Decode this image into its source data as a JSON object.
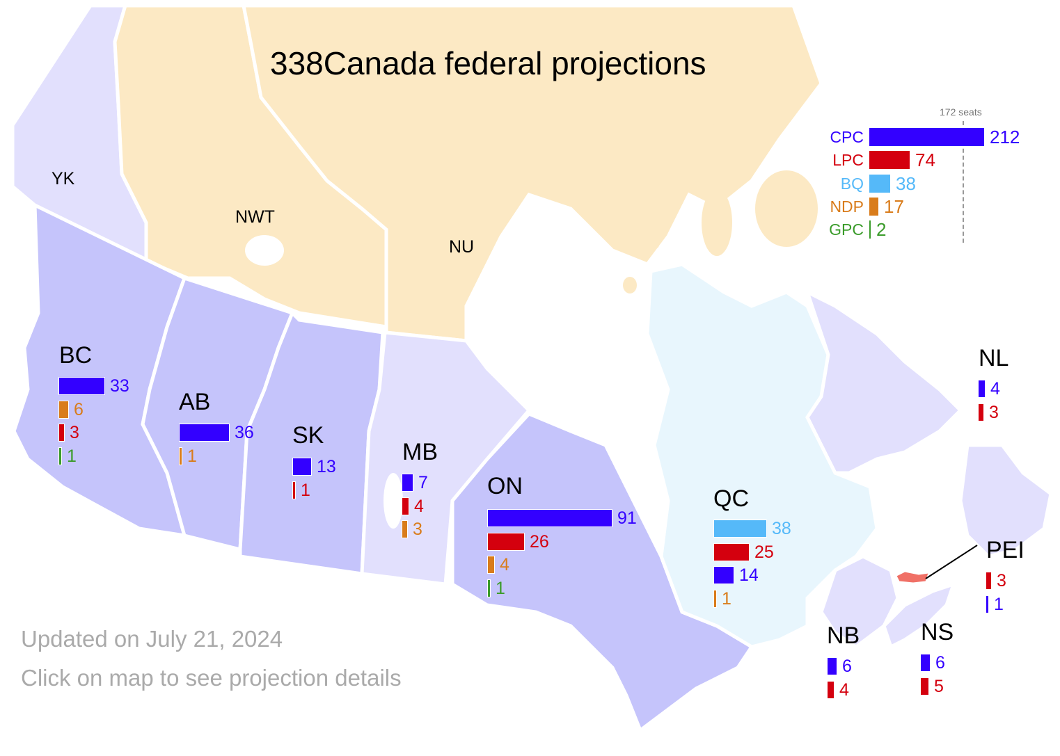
{
  "title": "338Canada federal projections",
  "footer": {
    "updated": "Updated on July 21, 2024",
    "hint": "Click on map to see projection details"
  },
  "colors": {
    "CPC": "#3300ff",
    "LPC": "#d4000e",
    "BQ": "#55b9f9",
    "NDP": "#d97c1b",
    "GPC": "#3a9b2a",
    "territory_north": "#fce9c4",
    "province_dark": "#c5c4fb",
    "province_light": "#e2e0fd",
    "quebec": "#e8f6fd",
    "pei": "#f07066"
  },
  "national": {
    "majority_label": "172 seats",
    "majority": 172,
    "parties": [
      {
        "party": "CPC",
        "seats": 212
      },
      {
        "party": "LPC",
        "seats": 74
      },
      {
        "party": "BQ",
        "seats": 38
      },
      {
        "party": "NDP",
        "seats": 17
      },
      {
        "party": "GPC",
        "seats": 2
      }
    ]
  },
  "territories": [
    {
      "code": "YK"
    },
    {
      "code": "NWT"
    },
    {
      "code": "NU"
    }
  ],
  "provinces": [
    {
      "code": "BC",
      "results": [
        {
          "party": "CPC",
          "seats": 33
        },
        {
          "party": "NDP",
          "seats": 6
        },
        {
          "party": "LPC",
          "seats": 3
        },
        {
          "party": "GPC",
          "seats": 1
        }
      ]
    },
    {
      "code": "AB",
      "results": [
        {
          "party": "CPC",
          "seats": 36
        },
        {
          "party": "NDP",
          "seats": 1
        }
      ]
    },
    {
      "code": "SK",
      "results": [
        {
          "party": "CPC",
          "seats": 13
        },
        {
          "party": "LPC",
          "seats": 1
        }
      ]
    },
    {
      "code": "MB",
      "results": [
        {
          "party": "CPC",
          "seats": 7
        },
        {
          "party": "LPC",
          "seats": 4
        },
        {
          "party": "NDP",
          "seats": 3
        }
      ]
    },
    {
      "code": "ON",
      "results": [
        {
          "party": "CPC",
          "seats": 91
        },
        {
          "party": "LPC",
          "seats": 26
        },
        {
          "party": "NDP",
          "seats": 4
        },
        {
          "party": "GPC",
          "seats": 1
        }
      ]
    },
    {
      "code": "QC",
      "results": [
        {
          "party": "BQ",
          "seats": 38
        },
        {
          "party": "LPC",
          "seats": 25
        },
        {
          "party": "CPC",
          "seats": 14
        },
        {
          "party": "NDP",
          "seats": 1
        }
      ]
    },
    {
      "code": "NL",
      "results": [
        {
          "party": "CPC",
          "seats": 4
        },
        {
          "party": "LPC",
          "seats": 3
        }
      ]
    },
    {
      "code": "PEI",
      "results": [
        {
          "party": "LPC",
          "seats": 3
        },
        {
          "party": "CPC",
          "seats": 1
        }
      ]
    },
    {
      "code": "NB",
      "results": [
        {
          "party": "CPC",
          "seats": 6
        },
        {
          "party": "LPC",
          "seats": 4
        }
      ]
    },
    {
      "code": "NS",
      "results": [
        {
          "party": "CPC",
          "seats": 6
        },
        {
          "party": "LPC",
          "seats": 5
        }
      ]
    }
  ]
}
